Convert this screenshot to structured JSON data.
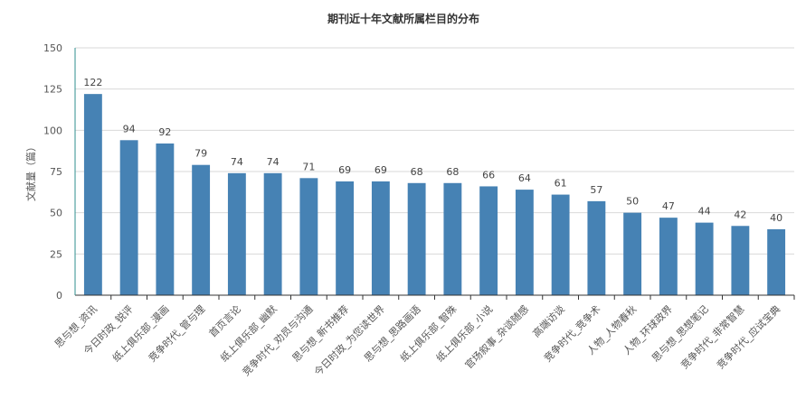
{
  "chart_data": {
    "type": "bar",
    "title": "期刊近十年文献所属栏目的分布",
    "xlabel": "",
    "ylabel": "文献量（篇）",
    "ylim": [
      0,
      150
    ],
    "yticks": [
      0,
      25,
      50,
      75,
      100,
      125,
      150
    ],
    "grid": true,
    "bar_color": "#4682b4",
    "categories": [
      "思与想_资讯",
      "今日时政_锐评",
      "纸上俱乐部_漫画",
      "竞争时代_管与理",
      "首页言论",
      "纸上俱乐部_幽默",
      "竞争时代_劝员与沟通",
      "思与想_新书推荐",
      "今日时政_为您读世界",
      "思与想_思路画语",
      "纸上俱乐部_智殊",
      "纸上俱乐部_小说",
      "官场叙事_杂谈随感",
      "高端访谈",
      "竞争时代_竞争术",
      "人物_人物春秋",
      "人物_环球政界",
      "思与想_思想笔记",
      "竞争时代_非常智慧",
      "竞争时代_应试宝典"
    ],
    "values": [
      122,
      94,
      92,
      79,
      74,
      74,
      71,
      69,
      69,
      68,
      68,
      66,
      64,
      61,
      57,
      50,
      47,
      44,
      42,
      40
    ]
  }
}
